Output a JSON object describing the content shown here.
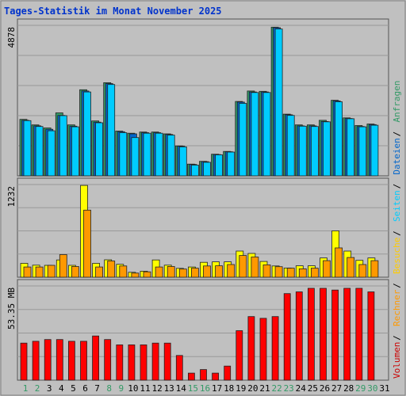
{
  "title": "Tages-Statistik im Monat November 2025",
  "chart_data": {
    "type": "bar",
    "title": "Tages-Statistik im Monat November 2025",
    "categories": [
      "1",
      "2",
      "3",
      "4",
      "5",
      "6",
      "7",
      "8",
      "9",
      "10",
      "11",
      "12",
      "13",
      "14",
      "15",
      "16",
      "17",
      "18",
      "19",
      "20",
      "21",
      "22",
      "23",
      "24",
      "25",
      "26",
      "27",
      "28",
      "29",
      "30",
      "31"
    ],
    "weekend_days": [
      "1",
      "2",
      "8",
      "9",
      "15",
      "16",
      "22",
      "23",
      "29",
      "30"
    ],
    "panels": [
      {
        "name": "top",
        "ylabel": "4878",
        "ymax": 4878,
        "series": [
          {
            "name": "Anfragen",
            "color": "#339966",
            "values": [
              1830,
              1650,
              1550,
              2040,
              1650,
              2790,
              1780,
              3020,
              1450,
              1380,
              1420,
              1420,
              1360,
              970,
              380,
              470,
              700,
              790,
              2410,
              2750,
              2740,
              4820,
              2000,
              1650,
              1650,
              1800,
              2450,
              1880,
              1630,
              1680,
              null
            ]
          },
          {
            "name": "Dateien",
            "color": "#0066CC",
            "values": [
              1800,
              1620,
              1510,
              1960,
              1610,
              2750,
              1740,
              2990,
              1430,
              1360,
              1400,
              1400,
              1340,
              960,
              370,
              460,
              690,
              780,
              2390,
              2720,
              2720,
              4800,
              1980,
              1620,
              1620,
              1760,
              2430,
              1860,
              1600,
              1660,
              null
            ]
          },
          {
            "name": "Seiten",
            "color": "#00CCFF",
            "values": [
              1790,
              1600,
              1460,
              1950,
              1590,
              2720,
              1720,
              2960,
              1400,
              1240,
              1380,
              1380,
              1320,
              940,
              350,
              440,
              680,
              770,
              2350,
              2700,
              2700,
              4760,
              1960,
              1610,
              1600,
              1750,
              2400,
              1850,
              1590,
              1640,
              null
            ]
          }
        ]
      },
      {
        "name": "middle",
        "ylabel": "1232",
        "ymax": 1232,
        "series": [
          {
            "name": "Besuche",
            "color": "#FFFF00",
            "values": [
              184,
              160,
              158,
              230,
              158,
              1220,
              184,
              232,
              172,
              65,
              80,
              230,
              160,
              118,
              136,
              198,
              204,
              204,
              348,
              316,
              210,
              150,
              122,
              152,
              152,
              256,
              616,
              348,
              224,
              256,
              null
            ]
          },
          {
            "name": "Rechner",
            "color": "#FF9900",
            "values": [
              136,
              136,
              158,
              300,
              142,
              892,
              136,
              216,
              150,
              55,
              72,
              136,
              142,
              108,
              120,
              150,
              152,
              168,
              288,
              268,
              164,
              140,
              120,
              112,
              120,
              220,
              390,
              262,
              168,
              220,
              null
            ]
          }
        ]
      },
      {
        "name": "bottom",
        "ylabel": "53.35 MB",
        "ymax": 53.35,
        "unit": "MB",
        "series": [
          {
            "name": "Volumen",
            "color": "#FF0000",
            "values": [
              21,
              22,
              23,
              23,
              22,
              22,
              25,
              23,
              20,
              20,
              20,
              21,
              21,
              14,
              4,
              6,
              4,
              8,
              28,
              36,
              35,
              36,
              49,
              50,
              52,
              52,
              51,
              52,
              52,
              50,
              null
            ]
          }
        ]
      }
    ],
    "legend": [
      {
        "label": "Volumen",
        "color": "#CC0000"
      },
      {
        "label": "Rechner",
        "color": "#FF9900"
      },
      {
        "label": "Besuche",
        "color": "#FFCC00"
      },
      {
        "label": "Seiten",
        "color": "#00CCFF"
      },
      {
        "label": "Dateien",
        "color": "#0066CC"
      },
      {
        "label": "Anfragen",
        "color": "#339966"
      }
    ],
    "legend_separator": "/",
    "legend_placement": "right-vertical",
    "grid": true
  }
}
